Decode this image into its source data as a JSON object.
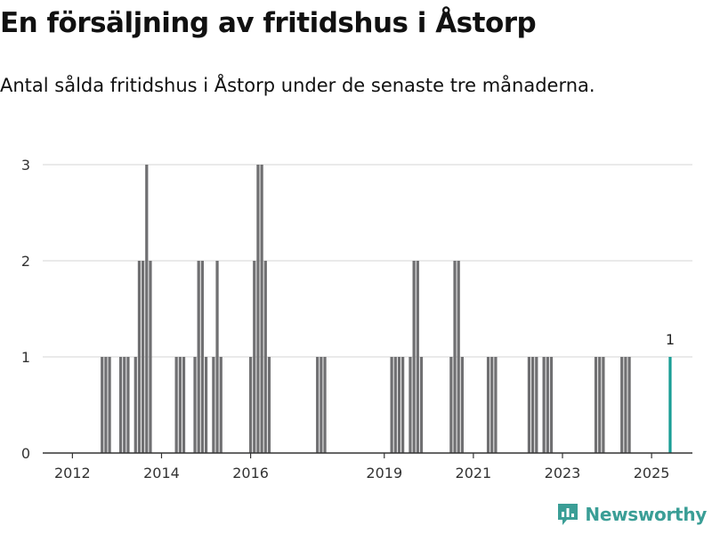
{
  "title": "En försäljning av fritidshus i Åstorp",
  "subtitle": "Antal sålda fritidshus i Åstorp under de senaste tre månaderna.",
  "brand": {
    "name": "Newsworthy",
    "color": "#3a9e96",
    "icon": "newsworthy-logo-icon"
  },
  "colors": {
    "bar": "#707072",
    "highlight": "#1a9e96",
    "grid": "#dddddd",
    "axis": "#333333"
  },
  "chart_data": {
    "type": "bar",
    "title": "En försäljning av fritidshus i Åstorp",
    "xlabel": "",
    "ylabel": "",
    "ylim": [
      0,
      3
    ],
    "xlim": [
      "2011-05",
      "2025-12"
    ],
    "y_ticks": [
      0,
      1,
      2,
      3
    ],
    "x_ticks": [
      "2012",
      "2014",
      "2016",
      "2019",
      "2021",
      "2023",
      "2025"
    ],
    "x_tick_dates": [
      "2012-01",
      "2014-01",
      "2016-01",
      "2019-01",
      "2021-01",
      "2023-01",
      "2025-01"
    ],
    "grid": true,
    "legend": "none",
    "series": [
      {
        "dates": [
          "2012-09",
          "2012-10",
          "2012-11",
          "2013-02",
          "2013-03",
          "2013-04",
          "2013-06",
          "2013-07",
          "2013-08",
          "2013-09",
          "2013-10",
          "2014-05",
          "2014-06",
          "2014-07",
          "2014-10",
          "2014-11",
          "2014-12",
          "2015-01",
          "2015-03",
          "2015-04",
          "2015-05",
          "2016-01",
          "2016-02",
          "2016-03",
          "2016-04",
          "2016-05",
          "2016-06",
          "2017-07",
          "2017-08",
          "2017-09",
          "2019-03",
          "2019-04",
          "2019-05",
          "2019-06",
          "2019-08",
          "2019-09",
          "2019-10",
          "2019-11",
          "2020-07",
          "2020-08",
          "2020-09",
          "2020-10",
          "2021-05",
          "2021-06",
          "2021-07",
          "2022-04",
          "2022-05",
          "2022-06",
          "2022-08",
          "2022-09",
          "2022-10",
          "2023-10",
          "2023-11",
          "2023-12",
          "2024-05",
          "2024-06",
          "2024-07"
        ],
        "values": [
          1,
          1,
          1,
          1,
          1,
          1,
          1,
          2,
          2,
          3,
          2,
          1,
          1,
          1,
          1,
          2,
          2,
          1,
          1,
          2,
          1,
          1,
          2,
          3,
          3,
          2,
          1,
          1,
          1,
          1,
          1,
          1,
          1,
          1,
          1,
          2,
          2,
          1,
          1,
          2,
          2,
          1,
          1,
          1,
          1,
          1,
          1,
          1,
          1,
          1,
          1,
          1,
          1,
          1,
          1,
          1,
          1
        ],
        "color": "#707072"
      },
      {
        "dates": [
          "2025-06"
        ],
        "values": [
          1
        ],
        "color": "#1a9e96",
        "data_label": "1"
      }
    ]
  }
}
